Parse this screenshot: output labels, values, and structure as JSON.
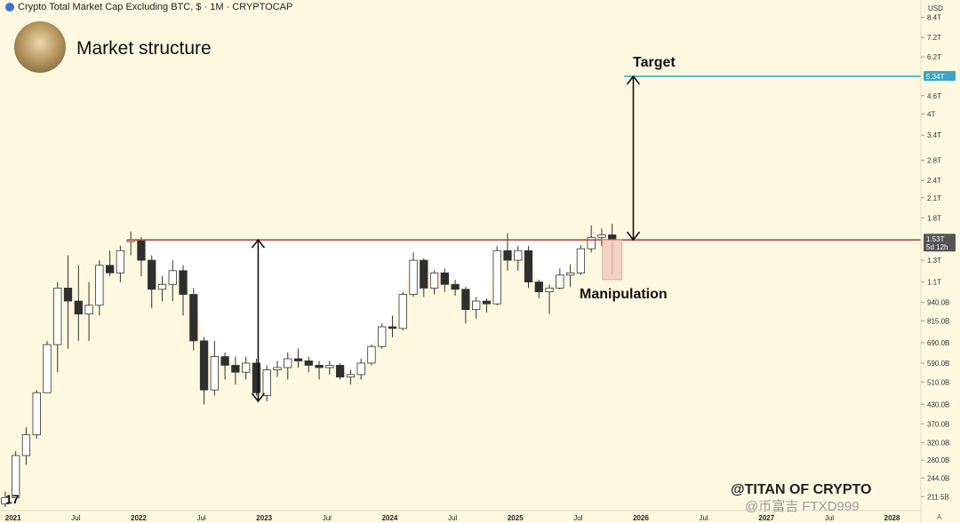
{
  "header": {
    "symbol_label": "Crypto Total Market Cap Excluding BTC, $ · 1M · CRYPTOCAP",
    "currency": "USD"
  },
  "overlay": {
    "title": "Market structure",
    "logo": "17",
    "watermark": "@TITAN OF CRYPTO",
    "watermark2": "@币富吉 FTXD999",
    "corner_mark": "A"
  },
  "colors": {
    "background": "#fdf8df",
    "up_fill": "#ffffff",
    "down_fill": "#2e2e2e",
    "resistance_line": "#b24a4a",
    "target_line": "#3aa7c9",
    "manipulation_box": "#f2c9bd"
  },
  "chart_data": {
    "type": "candlestick",
    "y_scale": "log",
    "ylim": [
      0.19,
      9.6
    ],
    "xlim": [
      "2020-12",
      "2028-04"
    ],
    "x_ticks": [
      {
        "label": "2021",
        "t": "2021-01"
      },
      {
        "label": "Jul",
        "t": "2021-07"
      },
      {
        "label": "2022",
        "t": "2022-01"
      },
      {
        "label": "Jul",
        "t": "2022-07"
      },
      {
        "label": "2023",
        "t": "2023-01"
      },
      {
        "label": "Jul",
        "t": "2023-07"
      },
      {
        "label": "2024",
        "t": "2024-01"
      },
      {
        "label": "Jul",
        "t": "2024-07"
      },
      {
        "label": "2025",
        "t": "2025-01"
      },
      {
        "label": "Jul",
        "t": "2025-07"
      },
      {
        "label": "2026",
        "t": "2026-01"
      },
      {
        "label": "Jul",
        "t": "2026-07"
      },
      {
        "label": "2027",
        "t": "2027-01"
      },
      {
        "label": "Jul",
        "t": "2027-07"
      },
      {
        "label": "2028",
        "t": "2028-01"
      }
    ],
    "y_ticks": [
      {
        "label": "8.4T",
        "v": 8.4
      },
      {
        "label": "7.2T",
        "v": 7.2
      },
      {
        "label": "6.2T",
        "v": 6.2
      },
      {
        "label": "4.6T",
        "v": 4.6
      },
      {
        "label": "4T",
        "v": 4.0
      },
      {
        "label": "3.4T",
        "v": 3.4
      },
      {
        "label": "2.8T",
        "v": 2.8
      },
      {
        "label": "2.4T",
        "v": 2.4
      },
      {
        "label": "2.1T",
        "v": 2.1
      },
      {
        "label": "1.8T",
        "v": 1.8
      },
      {
        "label": "1.3T",
        "v": 1.3
      },
      {
        "label": "1.1T",
        "v": 1.1
      },
      {
        "label": "940.0B",
        "v": 0.94
      },
      {
        "label": "815.0B",
        "v": 0.815
      },
      {
        "label": "690.0B",
        "v": 0.69
      },
      {
        "label": "590.0B",
        "v": 0.59
      },
      {
        "label": "510.0B",
        "v": 0.51
      },
      {
        "label": "430.0B",
        "v": 0.43
      },
      {
        "label": "370.0B",
        "v": 0.37
      },
      {
        "label": "320.0B",
        "v": 0.32
      },
      {
        "label": "280.0B",
        "v": 0.28
      },
      {
        "label": "244.0B",
        "v": 0.244
      },
      {
        "label": "211.5B",
        "v": 0.2115
      }
    ],
    "price_labels": [
      {
        "label": "5.34T",
        "v": 5.34,
        "color": "#3aa7c9"
      },
      {
        "label": "1.53T",
        "sub": "5d 12h",
        "v": 1.53,
        "color": "#555555"
      }
    ],
    "candles": [
      {
        "t": "2020-12",
        "o": 0.2,
        "h": 0.22,
        "l": 0.195,
        "c": 0.21
      },
      {
        "t": "2021-01",
        "o": 0.21,
        "h": 0.3,
        "l": 0.21,
        "c": 0.29
      },
      {
        "t": "2021-02",
        "o": 0.29,
        "h": 0.36,
        "l": 0.27,
        "c": 0.34
      },
      {
        "t": "2021-03",
        "o": 0.34,
        "h": 0.48,
        "l": 0.33,
        "c": 0.47
      },
      {
        "t": "2021-04",
        "o": 0.47,
        "h": 0.7,
        "l": 0.47,
        "c": 0.68
      },
      {
        "t": "2021-05",
        "o": 0.68,
        "h": 1.1,
        "l": 0.55,
        "c": 1.05
      },
      {
        "t": "2021-06",
        "o": 1.05,
        "h": 1.35,
        "l": 0.66,
        "c": 0.95
      },
      {
        "t": "2021-07",
        "o": 0.95,
        "h": 1.25,
        "l": 0.7,
        "c": 0.86
      },
      {
        "t": "2021-08",
        "o": 0.86,
        "h": 1.1,
        "l": 0.7,
        "c": 0.92
      },
      {
        "t": "2021-09",
        "o": 0.92,
        "h": 1.3,
        "l": 0.85,
        "c": 1.25
      },
      {
        "t": "2021-10",
        "o": 1.25,
        "h": 1.4,
        "l": 1.15,
        "c": 1.18
      },
      {
        "t": "2021-11",
        "o": 1.18,
        "h": 1.45,
        "l": 1.1,
        "c": 1.4
      },
      {
        "t": "2021-12",
        "o": 1.5,
        "h": 1.62,
        "l": 1.35,
        "c": 1.52
      },
      {
        "t": "2022-01",
        "o": 1.52,
        "h": 1.55,
        "l": 1.15,
        "c": 1.3
      },
      {
        "t": "2022-02",
        "o": 1.3,
        "h": 1.35,
        "l": 0.9,
        "c": 1.04
      },
      {
        "t": "2022-03",
        "o": 1.04,
        "h": 1.15,
        "l": 0.95,
        "c": 1.08
      },
      {
        "t": "2022-04",
        "o": 1.08,
        "h": 1.3,
        "l": 0.95,
        "c": 1.2
      },
      {
        "t": "2022-05",
        "o": 1.2,
        "h": 1.25,
        "l": 0.85,
        "c": 1.0
      },
      {
        "t": "2022-06",
        "o": 1.0,
        "h": 1.05,
        "l": 0.65,
        "c": 0.7
      },
      {
        "t": "2022-07",
        "o": 0.7,
        "h": 0.72,
        "l": 0.43,
        "c": 0.48
      },
      {
        "t": "2022-08",
        "o": 0.48,
        "h": 0.7,
        "l": 0.46,
        "c": 0.62
      },
      {
        "t": "2022-09",
        "o": 0.62,
        "h": 0.64,
        "l": 0.52,
        "c": 0.58
      },
      {
        "t": "2022-10",
        "o": 0.58,
        "h": 0.62,
        "l": 0.5,
        "c": 0.55
      },
      {
        "t": "2022-11",
        "o": 0.55,
        "h": 0.62,
        "l": 0.52,
        "c": 0.59
      },
      {
        "t": "2022-12",
        "o": 0.59,
        "h": 0.61,
        "l": 0.46,
        "c": 0.47
      },
      {
        "t": "2023-01",
        "o": 0.46,
        "h": 0.58,
        "l": 0.44,
        "c": 0.56
      },
      {
        "t": "2023-02",
        "o": 0.56,
        "h": 0.6,
        "l": 0.53,
        "c": 0.57
      },
      {
        "t": "2023-03",
        "o": 0.57,
        "h": 0.64,
        "l": 0.52,
        "c": 0.61
      },
      {
        "t": "2023-04",
        "o": 0.61,
        "h": 0.66,
        "l": 0.57,
        "c": 0.6
      },
      {
        "t": "2023-05",
        "o": 0.6,
        "h": 0.62,
        "l": 0.55,
        "c": 0.58
      },
      {
        "t": "2023-06",
        "o": 0.58,
        "h": 0.6,
        "l": 0.52,
        "c": 0.57
      },
      {
        "t": "2023-07",
        "o": 0.57,
        "h": 0.6,
        "l": 0.54,
        "c": 0.58
      },
      {
        "t": "2023-08",
        "o": 0.58,
        "h": 0.59,
        "l": 0.52,
        "c": 0.53
      },
      {
        "t": "2023-09",
        "o": 0.53,
        "h": 0.56,
        "l": 0.5,
        "c": 0.54
      },
      {
        "t": "2023-10",
        "o": 0.54,
        "h": 0.61,
        "l": 0.52,
        "c": 0.59
      },
      {
        "t": "2023-11",
        "o": 0.59,
        "h": 0.68,
        "l": 0.58,
        "c": 0.67
      },
      {
        "t": "2023-12",
        "o": 0.67,
        "h": 0.8,
        "l": 0.66,
        "c": 0.78
      },
      {
        "t": "2024-01",
        "o": 0.78,
        "h": 0.85,
        "l": 0.72,
        "c": 0.77
      },
      {
        "t": "2024-02",
        "o": 0.77,
        "h": 1.02,
        "l": 0.76,
        "c": 1.0
      },
      {
        "t": "2024-03",
        "o": 1.0,
        "h": 1.38,
        "l": 0.98,
        "c": 1.3
      },
      {
        "t": "2024-04",
        "o": 1.3,
        "h": 1.32,
        "l": 0.98,
        "c": 1.05
      },
      {
        "t": "2024-05",
        "o": 1.05,
        "h": 1.2,
        "l": 1.0,
        "c": 1.18
      },
      {
        "t": "2024-06",
        "o": 1.18,
        "h": 1.22,
        "l": 1.02,
        "c": 1.08
      },
      {
        "t": "2024-07",
        "o": 1.08,
        "h": 1.12,
        "l": 0.99,
        "c": 1.04
      },
      {
        "t": "2024-08",
        "o": 1.04,
        "h": 1.06,
        "l": 0.8,
        "c": 0.89
      },
      {
        "t": "2024-09",
        "o": 0.89,
        "h": 0.98,
        "l": 0.83,
        "c": 0.95
      },
      {
        "t": "2024-10",
        "o": 0.95,
        "h": 0.97,
        "l": 0.87,
        "c": 0.93
      },
      {
        "t": "2024-11",
        "o": 0.93,
        "h": 1.45,
        "l": 0.92,
        "c": 1.4
      },
      {
        "t": "2024-12",
        "o": 1.4,
        "h": 1.6,
        "l": 1.2,
        "c": 1.3
      },
      {
        "t": "2025-01",
        "o": 1.3,
        "h": 1.45,
        "l": 1.2,
        "c": 1.4
      },
      {
        "t": "2025-02",
        "o": 1.4,
        "h": 1.45,
        "l": 1.05,
        "c": 1.1
      },
      {
        "t": "2025-03",
        "o": 1.1,
        "h": 1.12,
        "l": 0.97,
        "c": 1.02
      },
      {
        "t": "2025-04",
        "o": 1.02,
        "h": 1.08,
        "l": 0.86,
        "c": 1.05
      },
      {
        "t": "2025-05",
        "o": 1.05,
        "h": 1.22,
        "l": 1.04,
        "c": 1.16
      },
      {
        "t": "2025-06",
        "o": 1.16,
        "h": 1.26,
        "l": 1.06,
        "c": 1.18
      },
      {
        "t": "2025-07",
        "o": 1.18,
        "h": 1.46,
        "l": 1.16,
        "c": 1.42
      },
      {
        "t": "2025-08",
        "o": 1.42,
        "h": 1.7,
        "l": 1.38,
        "c": 1.55
      },
      {
        "t": "2025-09",
        "o": 1.55,
        "h": 1.66,
        "l": 1.45,
        "c": 1.58
      },
      {
        "t": "2025-10",
        "o": 1.58,
        "h": 1.72,
        "l": 1.16,
        "c": 1.53
      }
    ],
    "levels": {
      "resistance": 1.52,
      "target": 5.34
    },
    "annotations": {
      "target_label": "Target",
      "manipulation_label": "Manipulation",
      "manipulation_range": [
        1.12,
        1.52
      ]
    }
  }
}
